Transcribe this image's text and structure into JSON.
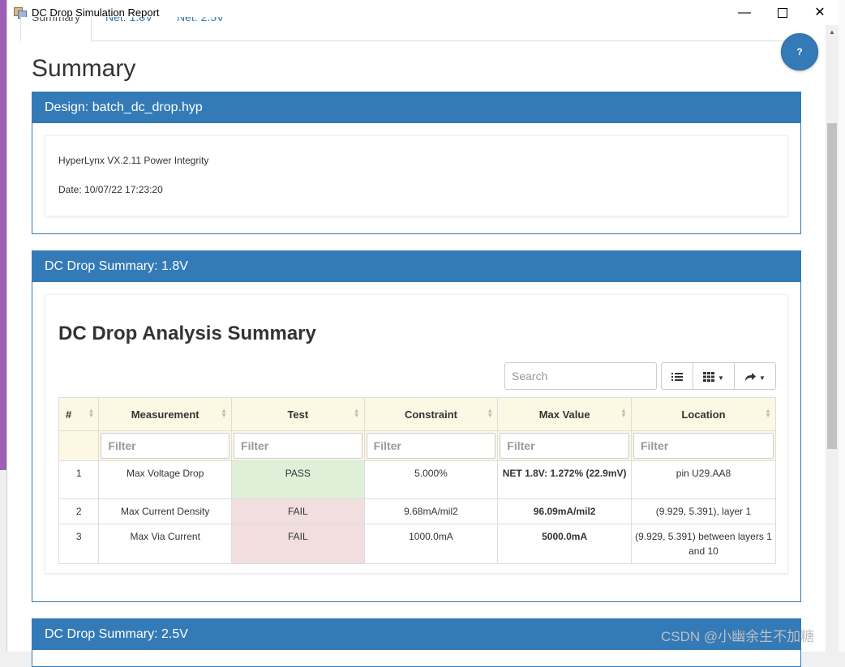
{
  "window": {
    "title": "DC Drop Simulation Report",
    "minimize": "—",
    "close": "✕"
  },
  "tabs": [
    {
      "label": "Summary"
    },
    {
      "label": "Net: 1.8V"
    },
    {
      "label": "Net: 2.5V"
    }
  ],
  "help_label": "?",
  "page_title": "Summary",
  "design_panel": {
    "heading": "Design: batch_dc_drop.hyp",
    "product": "HyperLynx VX.2.11 Power Integrity",
    "date": "Date: 10/07/22 17:23:20"
  },
  "summary_18": {
    "heading": "DC Drop Summary: 1.8V",
    "card_title": "DC Drop Analysis Summary",
    "search_placeholder": "Search",
    "columns": [
      "#",
      "Measurement",
      "Test",
      "Constraint",
      "Max Value",
      "Location"
    ],
    "filter_placeholder": "Filter",
    "rows": [
      {
        "num": "1",
        "measurement": "Max Voltage Drop",
        "test": "PASS",
        "constraint": "5.000%",
        "max_value": "NET 1.8V: 1.272% (22.9mV)",
        "location": "pin U29.AA8"
      },
      {
        "num": "2",
        "measurement": "Max Current Density",
        "test": "FAIL",
        "constraint": "9.68mA/mil2",
        "max_value": "96.09mA/mil2",
        "location": "(9.929, 5.391), layer 1"
      },
      {
        "num": "3",
        "measurement": "Max Via Current",
        "test": "FAIL",
        "constraint": "1000.0mA",
        "max_value": "5000.0mA",
        "location": "(9.929, 5.391) between layers 1 and 10"
      }
    ],
    "status_colors": {
      "pass": "#dff0d8",
      "fail": "#f2dede"
    }
  },
  "summary_25": {
    "heading": "DC Drop Summary: 2.5V"
  },
  "watermark": "CSDN @小幽余生不加糖",
  "accent_color": "#337ab7"
}
